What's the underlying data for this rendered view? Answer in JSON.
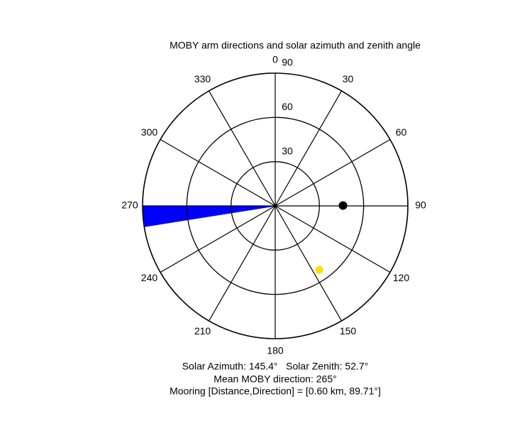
{
  "chart_data": {
    "type": "polar",
    "title": "MOBY arm directions and solar azimuth and zenith angle",
    "rlim": [
      0,
      90
    ],
    "rticks": [
      30,
      60,
      90
    ],
    "angle_ticks": [
      0,
      30,
      60,
      90,
      120,
      150,
      180,
      210,
      240,
      270,
      300,
      330
    ],
    "arm_wedge": [
      261,
      270
    ],
    "arm_color": "#0000ff",
    "mooring": {
      "direction": 89.71,
      "r": 46,
      "color": "#000000"
    },
    "sun": {
      "azimuth": 145.4,
      "zenith": 52.7,
      "color": "#ffdd00"
    },
    "footer": [
      "Solar Azimuth: 145.4°   Solar Zenith: 52.7°",
      "Mean MOBY direction: 265°",
      "Mooring [Distance,Direction] = [0.60 km, 89.71°]"
    ]
  }
}
